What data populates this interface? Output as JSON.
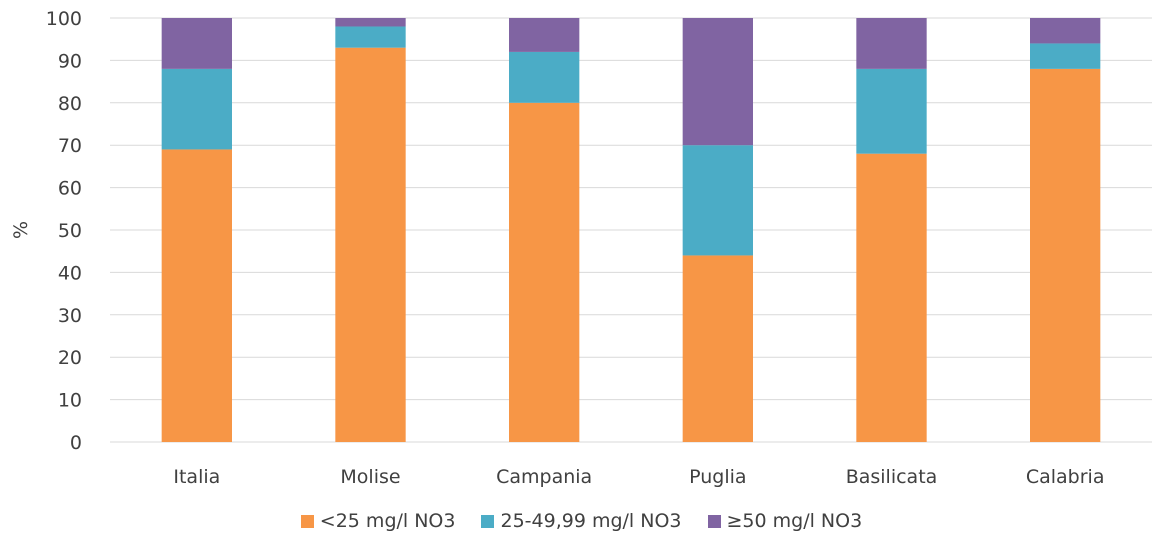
{
  "chart_data": {
    "type": "bar",
    "stacked": true,
    "categories": [
      "Italia",
      "Molise",
      "Campania",
      "Puglia",
      "Basilicata",
      "Calabria"
    ],
    "series": [
      {
        "name": "<25 mg/l NO3",
        "color": "#F79646",
        "values": [
          69,
          93,
          80,
          44,
          68,
          88
        ]
      },
      {
        "name": "25-49,99 mg/l NO3",
        "color": "#4BACC6",
        "values": [
          19,
          5,
          12,
          26,
          20,
          6
        ]
      },
      {
        "name": "≥50 mg/l NO3",
        "color": "#8064A2",
        "values": [
          12,
          2,
          8,
          30,
          12,
          6
        ]
      }
    ],
    "ylabel": "%",
    "ylim": [
      0,
      100
    ],
    "yticks": [
      "0",
      "10",
      "20",
      "30",
      "40",
      "50",
      "60",
      "70",
      "80",
      "90",
      "100"
    ],
    "grid": true,
    "legend_position": "bottom"
  }
}
